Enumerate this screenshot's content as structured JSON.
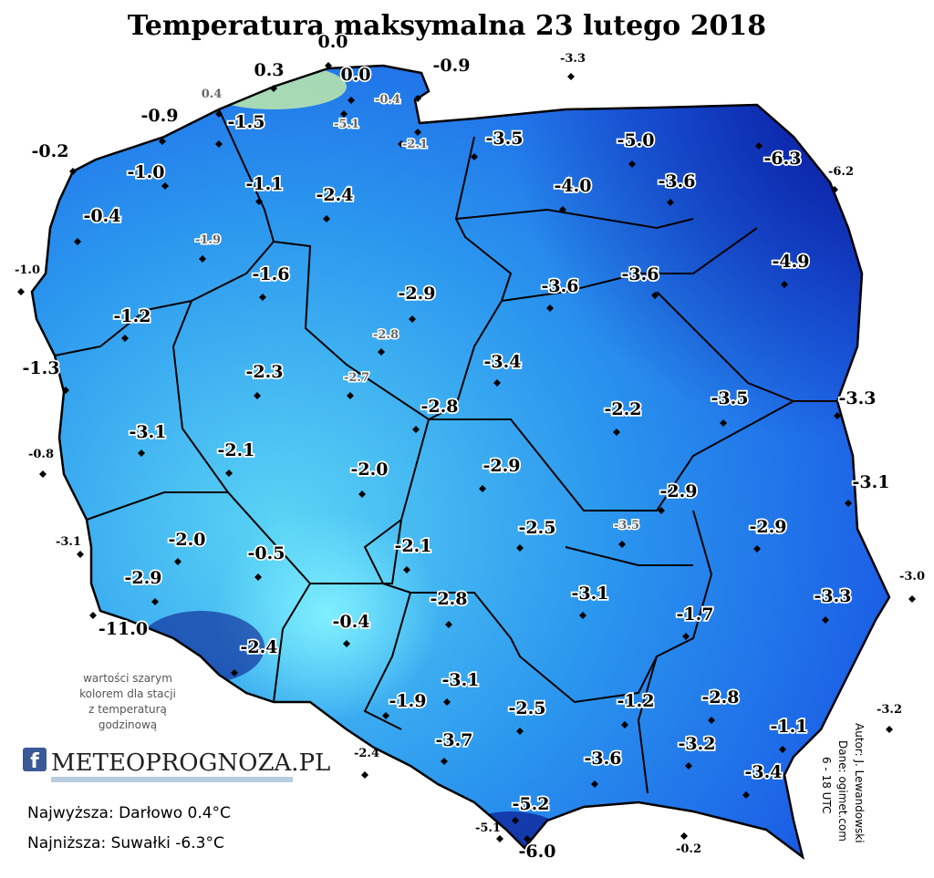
{
  "title": "Temperatura maksymalna 23 lutego 2018",
  "stations": [
    "0.0",
    "0.3",
    "0.0",
    "-0.9",
    "-3.3",
    "0.4",
    "-0.4",
    "-5.1",
    "-0.9",
    "-1.5",
    "-2.1",
    "-3.5",
    "-5.0",
    "-6.3",
    "-0.2",
    "-6.2",
    "-1.0",
    "-1.1",
    "-4.0",
    "-3.6",
    "-2.4",
    "-0.4",
    "-1.9",
    "-1.0",
    "-4.9",
    "-1.6",
    "-3.6",
    "-3.6",
    "-2.9",
    "-1.2",
    "-2.8",
    "-1.3",
    "-2.3",
    "-2.7",
    "-3.4",
    "-3.3",
    "-3.5",
    "-2.8",
    "-2.2",
    "-3.1",
    "-0.8",
    "-2.1",
    "-2.0",
    "-2.9",
    "-3.1",
    "-2.9",
    "-2.9",
    "-3.5",
    "-2.5",
    "-3.1",
    "-2.0",
    "-0.5",
    "-2.1",
    "-3.0",
    "-2.9",
    "-2.8",
    "-3.1",
    "-3.3",
    "-11.0",
    "-0.4",
    "-1.7",
    "-2.4",
    "-1.9",
    "-3.1",
    "-2.5",
    "-1.2",
    "-2.8",
    "-3.2",
    "-1.1",
    "-2.4",
    "-3.7",
    "-3.2",
    "-3.6",
    "-3.4",
    "-5.2",
    "-5.1",
    "-6.0",
    "-0.2"
  ],
  "note": [
    "wartości szarym",
    "kolorem dla stacji",
    "z temperaturą",
    "godzinową"
  ],
  "logo": {
    "icon": "f",
    "text": "METEOPROGNOZA.PL"
  },
  "extremes": [
    "Najwyższa: Darłowo 0.4°C",
    "Najniższa: Suwałki -6.3°C"
  ],
  "credits": [
    "Autor: J. Lewandowski",
    "Dane: ogimet.com",
    "6 - 18 UTC"
  ]
}
